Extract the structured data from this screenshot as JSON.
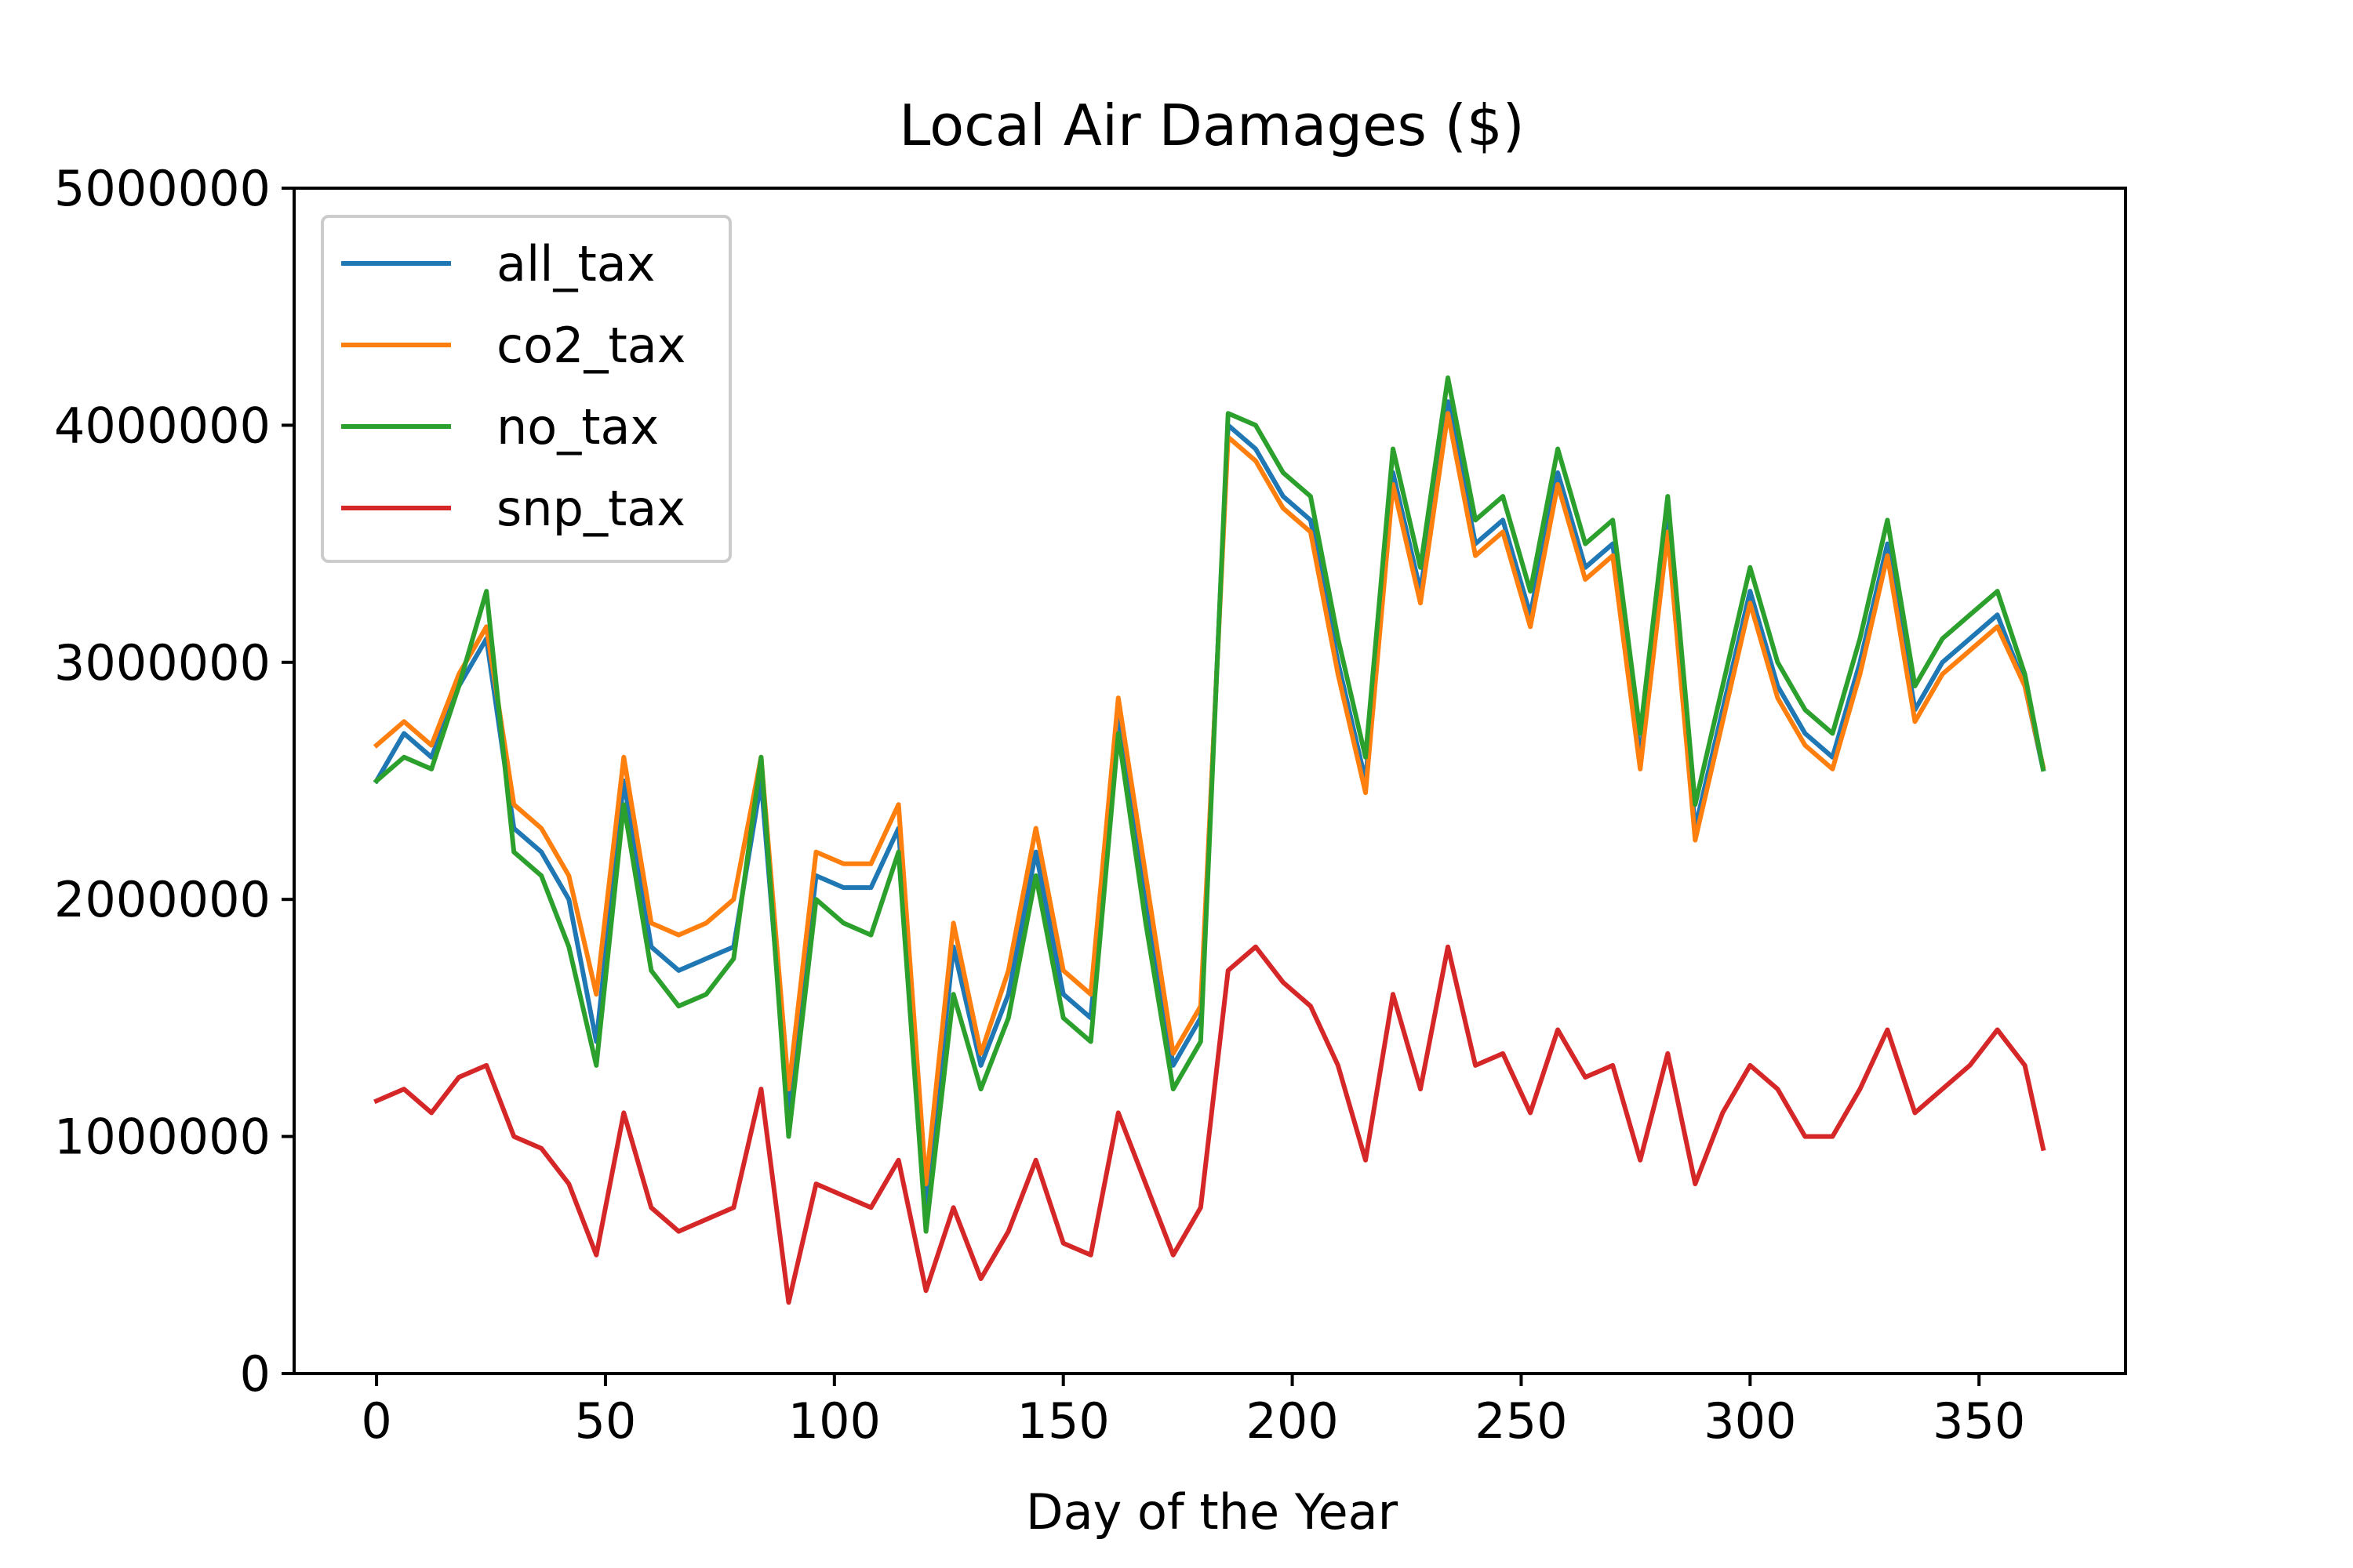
{
  "chart_data": {
    "type": "line",
    "title": "Local Air Damages ($)",
    "xlabel": "Day of the Year",
    "ylabel": "",
    "xlim": [
      -18,
      382
    ],
    "ylim": [
      0,
      5000000
    ],
    "xticks": [
      0,
      50,
      100,
      150,
      200,
      250,
      300,
      350
    ],
    "yticks": [
      0,
      1000000,
      2000000,
      3000000,
      4000000,
      5000000
    ],
    "xtick_labels": [
      "0",
      "50",
      "100",
      "150",
      "200",
      "250",
      "300",
      "350"
    ],
    "ytick_labels": [
      "0",
      "1000000",
      "2000000",
      "3000000",
      "4000000",
      "5000000"
    ],
    "grid": false,
    "legend_position": "top-left",
    "x": [
      0,
      6,
      12,
      18,
      24,
      30,
      36,
      42,
      48,
      54,
      60,
      66,
      72,
      78,
      84,
      90,
      96,
      102,
      108,
      114,
      120,
      126,
      132,
      138,
      144,
      150,
      156,
      162,
      168,
      174,
      180,
      186,
      192,
      198,
      204,
      210,
      216,
      222,
      228,
      234,
      240,
      246,
      252,
      258,
      264,
      270,
      276,
      282,
      288,
      294,
      300,
      306,
      312,
      318,
      324,
      330,
      336,
      342,
      348,
      354,
      360,
      364
    ],
    "series": [
      {
        "name": "all_tax",
        "color": "#1f77b4",
        "values": [
          2500000,
          2700000,
          2600000,
          2900000,
          3100000,
          2300000,
          2200000,
          2000000,
          1400000,
          2500000,
          1800000,
          1700000,
          1750000,
          1800000,
          2500000,
          1100000,
          2100000,
          2050000,
          2050000,
          2300000,
          700000,
          1800000,
          1300000,
          1600000,
          2200000,
          1600000,
          1500000,
          2800000,
          2000000,
          1300000,
          1500000,
          4000000,
          3900000,
          3700000,
          3600000,
          3000000,
          2500000,
          3800000,
          3300000,
          4100000,
          3500000,
          3600000,
          3200000,
          3800000,
          3400000,
          3500000,
          2600000,
          3600000,
          2300000,
          2800000,
          3300000,
          2900000,
          2700000,
          2600000,
          3000000,
          3500000,
          2800000,
          3000000,
          3100000,
          3200000,
          2900000,
          2550000
        ]
      },
      {
        "name": "co2_tax",
        "color": "#ff7f0e",
        "values": [
          2650000,
          2750000,
          2650000,
          2950000,
          3150000,
          2400000,
          2300000,
          2100000,
          1600000,
          2600000,
          1900000,
          1850000,
          1900000,
          2000000,
          2600000,
          1200000,
          2200000,
          2150000,
          2150000,
          2400000,
          800000,
          1900000,
          1350000,
          1700000,
          2300000,
          1700000,
          1600000,
          2850000,
          2100000,
          1350000,
          1550000,
          3950000,
          3850000,
          3650000,
          3550000,
          2950000,
          2450000,
          3750000,
          3250000,
          4050000,
          3450000,
          3550000,
          3150000,
          3750000,
          3350000,
          3450000,
          2550000,
          3550000,
          2250000,
          2750000,
          3250000,
          2850000,
          2650000,
          2550000,
          2950000,
          3450000,
          2750000,
          2950000,
          3050000,
          3150000,
          2900000,
          2560000
        ]
      },
      {
        "name": "no_tax",
        "color": "#2ca02c",
        "values": [
          2500000,
          2600000,
          2550000,
          2900000,
          3300000,
          2200000,
          2100000,
          1800000,
          1300000,
          2400000,
          1700000,
          1550000,
          1600000,
          1750000,
          2600000,
          1000000,
          2000000,
          1900000,
          1850000,
          2200000,
          600000,
          1600000,
          1200000,
          1500000,
          2100000,
          1500000,
          1400000,
          2700000,
          1900000,
          1200000,
          1400000,
          4050000,
          4000000,
          3800000,
          3700000,
          3100000,
          2600000,
          3900000,
          3400000,
          4200000,
          3600000,
          3700000,
          3300000,
          3900000,
          3500000,
          3600000,
          2700000,
          3700000,
          2400000,
          2900000,
          3400000,
          3000000,
          2800000,
          2700000,
          3100000,
          3600000,
          2900000,
          3100000,
          3200000,
          3300000,
          2950000,
          2550000
        ]
      },
      {
        "name": "snp_tax",
        "color": "#d62728",
        "values": [
          1150000,
          1200000,
          1100000,
          1250000,
          1300000,
          1000000,
          950000,
          800000,
          500000,
          1100000,
          700000,
          600000,
          650000,
          700000,
          1200000,
          300000,
          800000,
          750000,
          700000,
          900000,
          350000,
          700000,
          400000,
          600000,
          900000,
          550000,
          500000,
          1100000,
          800000,
          500000,
          700000,
          1700000,
          1800000,
          1650000,
          1550000,
          1300000,
          900000,
          1600000,
          1200000,
          1800000,
          1300000,
          1350000,
          1100000,
          1450000,
          1250000,
          1300000,
          900000,
          1350000,
          800000,
          1100000,
          1300000,
          1200000,
          1000000,
          1000000,
          1200000,
          1450000,
          1100000,
          1200000,
          1300000,
          1450000,
          1300000,
          950000
        ]
      }
    ]
  }
}
